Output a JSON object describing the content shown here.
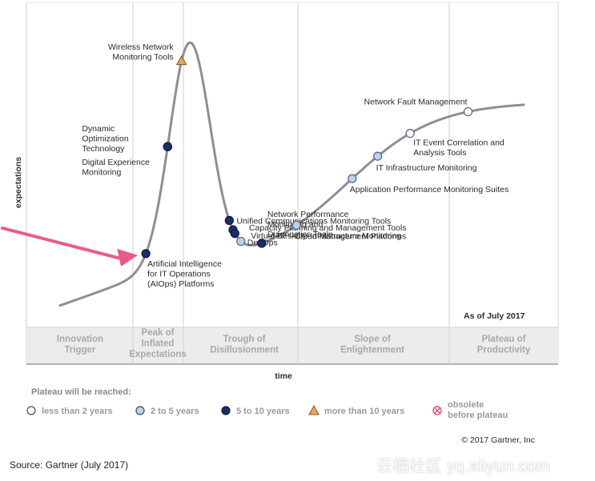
{
  "chart_data": {
    "type": "line",
    "ylabel": "expectations",
    "xlabel": "time",
    "as_of": "As of July 2017",
    "copyright": "© 2017 Gartner, Inc",
    "phases": [
      {
        "lines": [
          "Innovation",
          "Trigger"
        ]
      },
      {
        "lines": [
          "Peak of",
          "Inflated",
          "Expectations"
        ]
      },
      {
        "lines": [
          "Trough of",
          "Disillusionment"
        ]
      },
      {
        "lines": [
          "Slope of",
          "Enlightenment"
        ]
      },
      {
        "lines": [
          "Plateau of",
          "Productivity"
        ]
      }
    ],
    "technologies": [
      {
        "label_lines": [
          "Wireless Network",
          "Monitoring Tools"
        ],
        "category": "more than 10 years",
        "t": 2.62
      },
      {
        "label_lines": [
          "Dynamic",
          "Optimization",
          "Technology"
        ],
        "category": "5 to 10 years",
        "t": 2.32
      },
      {
        "label_lines": [
          "Digital Experience",
          "Monitoring"
        ],
        "category": "5 to 10 years",
        "t": 2.32
      },
      {
        "label_lines": [
          "Artificial Intelligence",
          "for IT Operations",
          "(AIOps) Platforms"
        ],
        "category": "5 to 10 years",
        "t": 1.85
      },
      {
        "label_lines": [
          "Unified Communications Monitoring Tools"
        ],
        "category": "5 to 10 years",
        "t": 3.65
      },
      {
        "label_lines": [
          "Capacity Planning and Management Tools"
        ],
        "category": "5 to 10 years",
        "t": 3.73
      },
      {
        "label_lines": [
          "Virtual Desktop Infrastructure Monitoring"
        ],
        "category": "5 to 10 years",
        "t": 3.77
      },
      {
        "label_lines": [
          "DevOps"
        ],
        "category": "2 to 5 years",
        "t": 3.9
      },
      {
        "label_lines": [
          "Network Performance",
          "Monitoring and",
          "Diagnostics Tools"
        ],
        "category": "5 to 10 years",
        "t": 4.35
      },
      {
        "label_lines": [
          "Cloud Management Platforms"
        ],
        "category": "2 to 5 years",
        "t": 5.1
      },
      {
        "label_lines": [
          "Application Performance Monitoring Suites"
        ],
        "category": "2 to 5 years",
        "t": 6.3
      },
      {
        "label_lines": [
          "IT Infrastructure Monitoring"
        ],
        "category": "2 to 5 years",
        "t": 6.85
      },
      {
        "label_lines": [
          "IT Event Correlation and",
          "Analysis Tools"
        ],
        "category": "less than 2 years",
        "t": 7.55
      },
      {
        "label_lines": [
          "Network Fault Management"
        ],
        "category": "less than 2 years",
        "t": 8.8
      }
    ],
    "legend": {
      "title": "Plateau will be reached:",
      "items": [
        {
          "label_lines": [
            "less than 2 years"
          ],
          "marker": "circle",
          "fill": "#ffffff"
        },
        {
          "label_lines": [
            "2 to 5 years"
          ],
          "marker": "circle",
          "fill": "#b9d3ea"
        },
        {
          "label_lines": [
            "5 to 10 years"
          ],
          "marker": "circle",
          "fill": "#1a2f66"
        },
        {
          "label_lines": [
            "more than 10 years"
          ],
          "marker": "triangle",
          "fill": "#e8a45a"
        },
        {
          "label_lines": [
            "obsolete",
            "before plateau"
          ],
          "marker": "obsolete",
          "fill": "#ffffff"
        }
      ]
    },
    "colors": {
      "curve": "#8f8f8f",
      "arrow": "#ea5a86",
      "less_than_2": "#ffffff",
      "two_to_5": "#b9d3ea",
      "five_to_10": "#1a2f66",
      "more_than_10": "#e8a45a",
      "obsolete": "#e0526a"
    }
  },
  "source": "Source: Gartner (July 2017)",
  "watermark": "云栖社区 yq.aliyun.com"
}
